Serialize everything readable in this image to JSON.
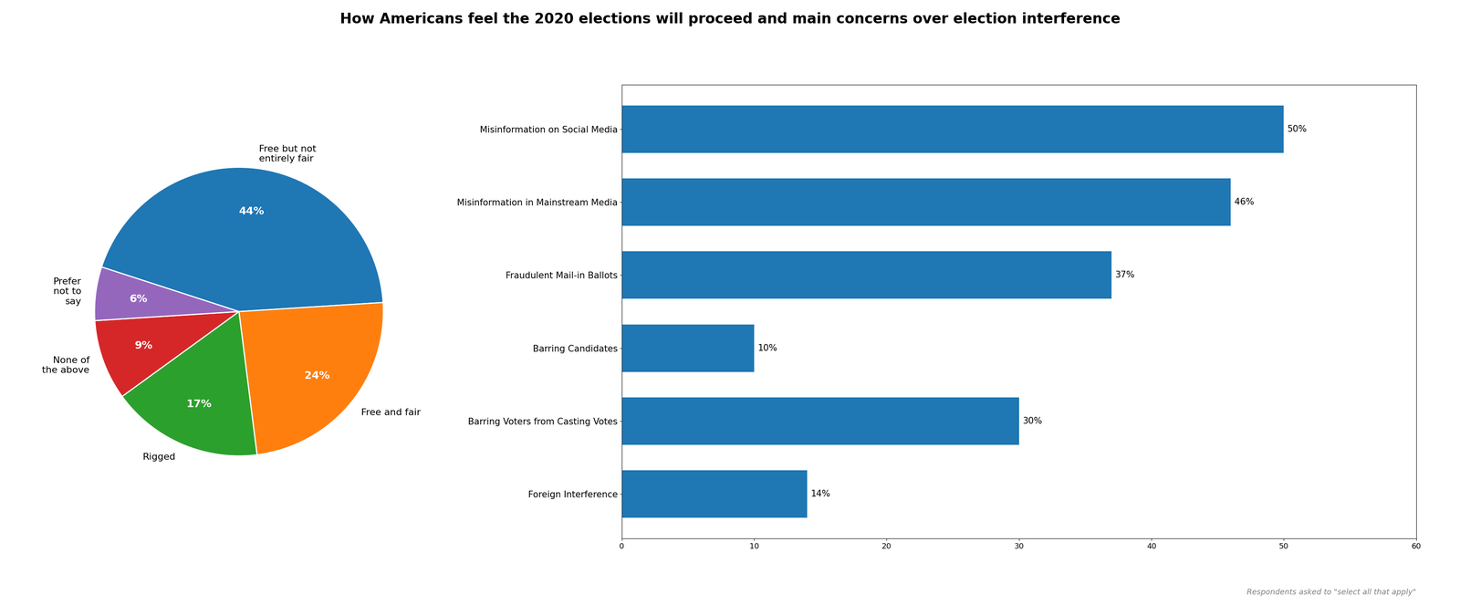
{
  "chart_data": [
    {
      "type": "pie",
      "title": "How Americans feel the 2020 elections will proceed and main concerns over election interference",
      "categories": [
        "Free but not\nentirely fair",
        "Free and fair",
        "Rigged",
        "None of\nthe above",
        "Prefer\nnot to\nsay"
      ],
      "values": [
        44,
        24,
        17,
        9,
        6
      ],
      "value_labels": [
        "44%",
        "24%",
        "17%",
        "9%",
        "6%"
      ],
      "data_labels": true
    },
    {
      "type": "bar",
      "orientation": "horizontal",
      "categories": [
        "Misinformation on Social Media",
        "Misinformation in Mainstream Media",
        "Fraudulent Mail-in Ballots",
        "Barring Candidates",
        "Barring Voters from Casting Votes",
        "Foreign Interference"
      ],
      "values": [
        50,
        46,
        37,
        10,
        30,
        14
      ],
      "value_labels": [
        "50%",
        "46%",
        "37%",
        "10%",
        "30%",
        "14%"
      ],
      "data_labels": true,
      "xlim": [
        0,
        60
      ],
      "xticks": [
        0,
        10,
        20,
        30,
        40,
        50,
        60
      ],
      "annotations": [
        "Respondents asked to \"select all that apply\""
      ]
    }
  ]
}
